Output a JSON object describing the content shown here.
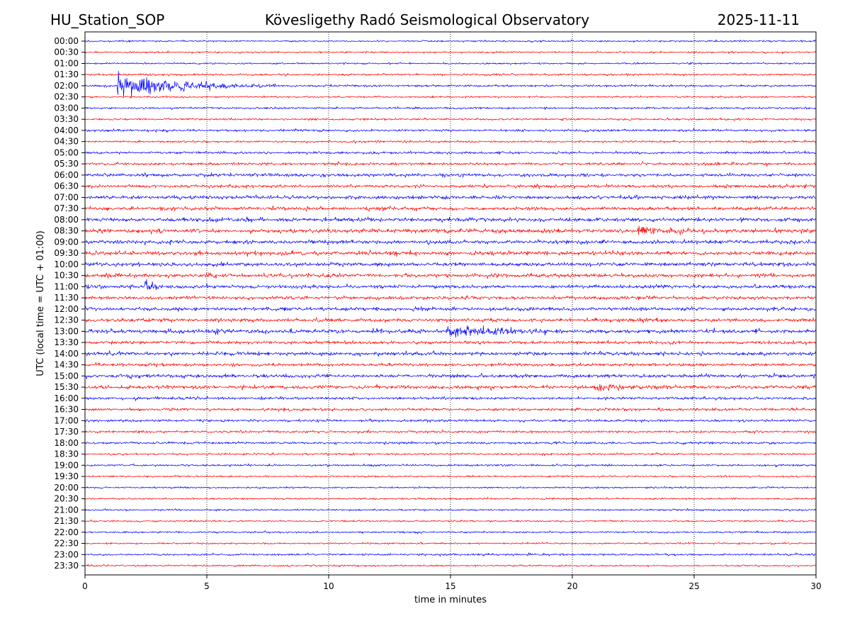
{
  "header": {
    "station": "HU_Station_SOP",
    "observatory": "Kövesligethy Radó Seismological Observatory",
    "date": "2025-11-11"
  },
  "chart_data": {
    "type": "line",
    "title": "Kövesligethy Radó Seismological Observatory",
    "xlabel": "time in minutes",
    "ylabel": "UTC (local time = UTC + 01:00)",
    "xlim": [
      0,
      30
    ],
    "x_ticks": [
      0,
      5,
      10,
      15,
      20,
      25,
      30
    ],
    "x_tick_labels": [
      "0",
      "5",
      "10",
      "15",
      "20",
      "25",
      "30"
    ],
    "grid": "vertical dotted at x ticks",
    "series_colors": [
      "#0000ff",
      "#ff0000"
    ],
    "rows": [
      "00:00",
      "00:30",
      "01:00",
      "01:30",
      "02:00",
      "02:30",
      "03:00",
      "03:30",
      "04:00",
      "04:30",
      "05:00",
      "05:30",
      "06:00",
      "06:30",
      "07:00",
      "07:30",
      "08:00",
      "08:30",
      "09:00",
      "09:30",
      "10:00",
      "10:30",
      "11:00",
      "11:30",
      "12:00",
      "12:30",
      "13:00",
      "13:30",
      "14:00",
      "14:30",
      "15:00",
      "15:30",
      "16:00",
      "16:30",
      "17:00",
      "17:30",
      "18:00",
      "18:30",
      "19:00",
      "19:30",
      "20:00",
      "20:30",
      "21:00",
      "21:30",
      "22:00",
      "22:30",
      "23:00",
      "23:30"
    ],
    "noise_level": [
      0.25,
      0.25,
      0.25,
      0.3,
      0.3,
      0.25,
      0.3,
      0.3,
      0.35,
      0.3,
      0.35,
      0.4,
      0.45,
      0.45,
      0.5,
      0.5,
      0.55,
      0.6,
      0.55,
      0.6,
      0.55,
      0.55,
      0.5,
      0.5,
      0.5,
      0.5,
      0.55,
      0.45,
      0.5,
      0.45,
      0.5,
      0.5,
      0.4,
      0.4,
      0.35,
      0.35,
      0.35,
      0.3,
      0.3,
      0.25,
      0.25,
      0.25,
      0.25,
      0.25,
      0.25,
      0.25,
      0.3,
      0.25
    ],
    "events": [
      {
        "row": "02:00",
        "start_min": 1.3,
        "peak_amplitude": 4.0,
        "decay_min": 2.2,
        "end_min": 7.8
      },
      {
        "row": "11:00",
        "start_min": 2.4,
        "peak_amplitude": 1.6,
        "decay_min": 0.4,
        "end_min": 3.2
      },
      {
        "row": "13:00",
        "start_min": 5.2,
        "peak_amplitude": 1.3,
        "decay_min": 0.3,
        "end_min": 5.8
      },
      {
        "row": "13:00",
        "start_min": 14.8,
        "peak_amplitude": 1.2,
        "decay_min": 2.5,
        "end_min": 19.0
      },
      {
        "row": "08:30",
        "start_min": 22.6,
        "peak_amplitude": 1.1,
        "decay_min": 1.0,
        "end_min": 25.0
      },
      {
        "row": "15:30",
        "start_min": 21.0,
        "peak_amplitude": 0.9,
        "decay_min": 1.5,
        "end_min": 23.5
      },
      {
        "row": "15:00",
        "start_min": 1.7,
        "peak_amplitude": 1.0,
        "decay_min": 0.2,
        "end_min": 2.0
      }
    ]
  }
}
